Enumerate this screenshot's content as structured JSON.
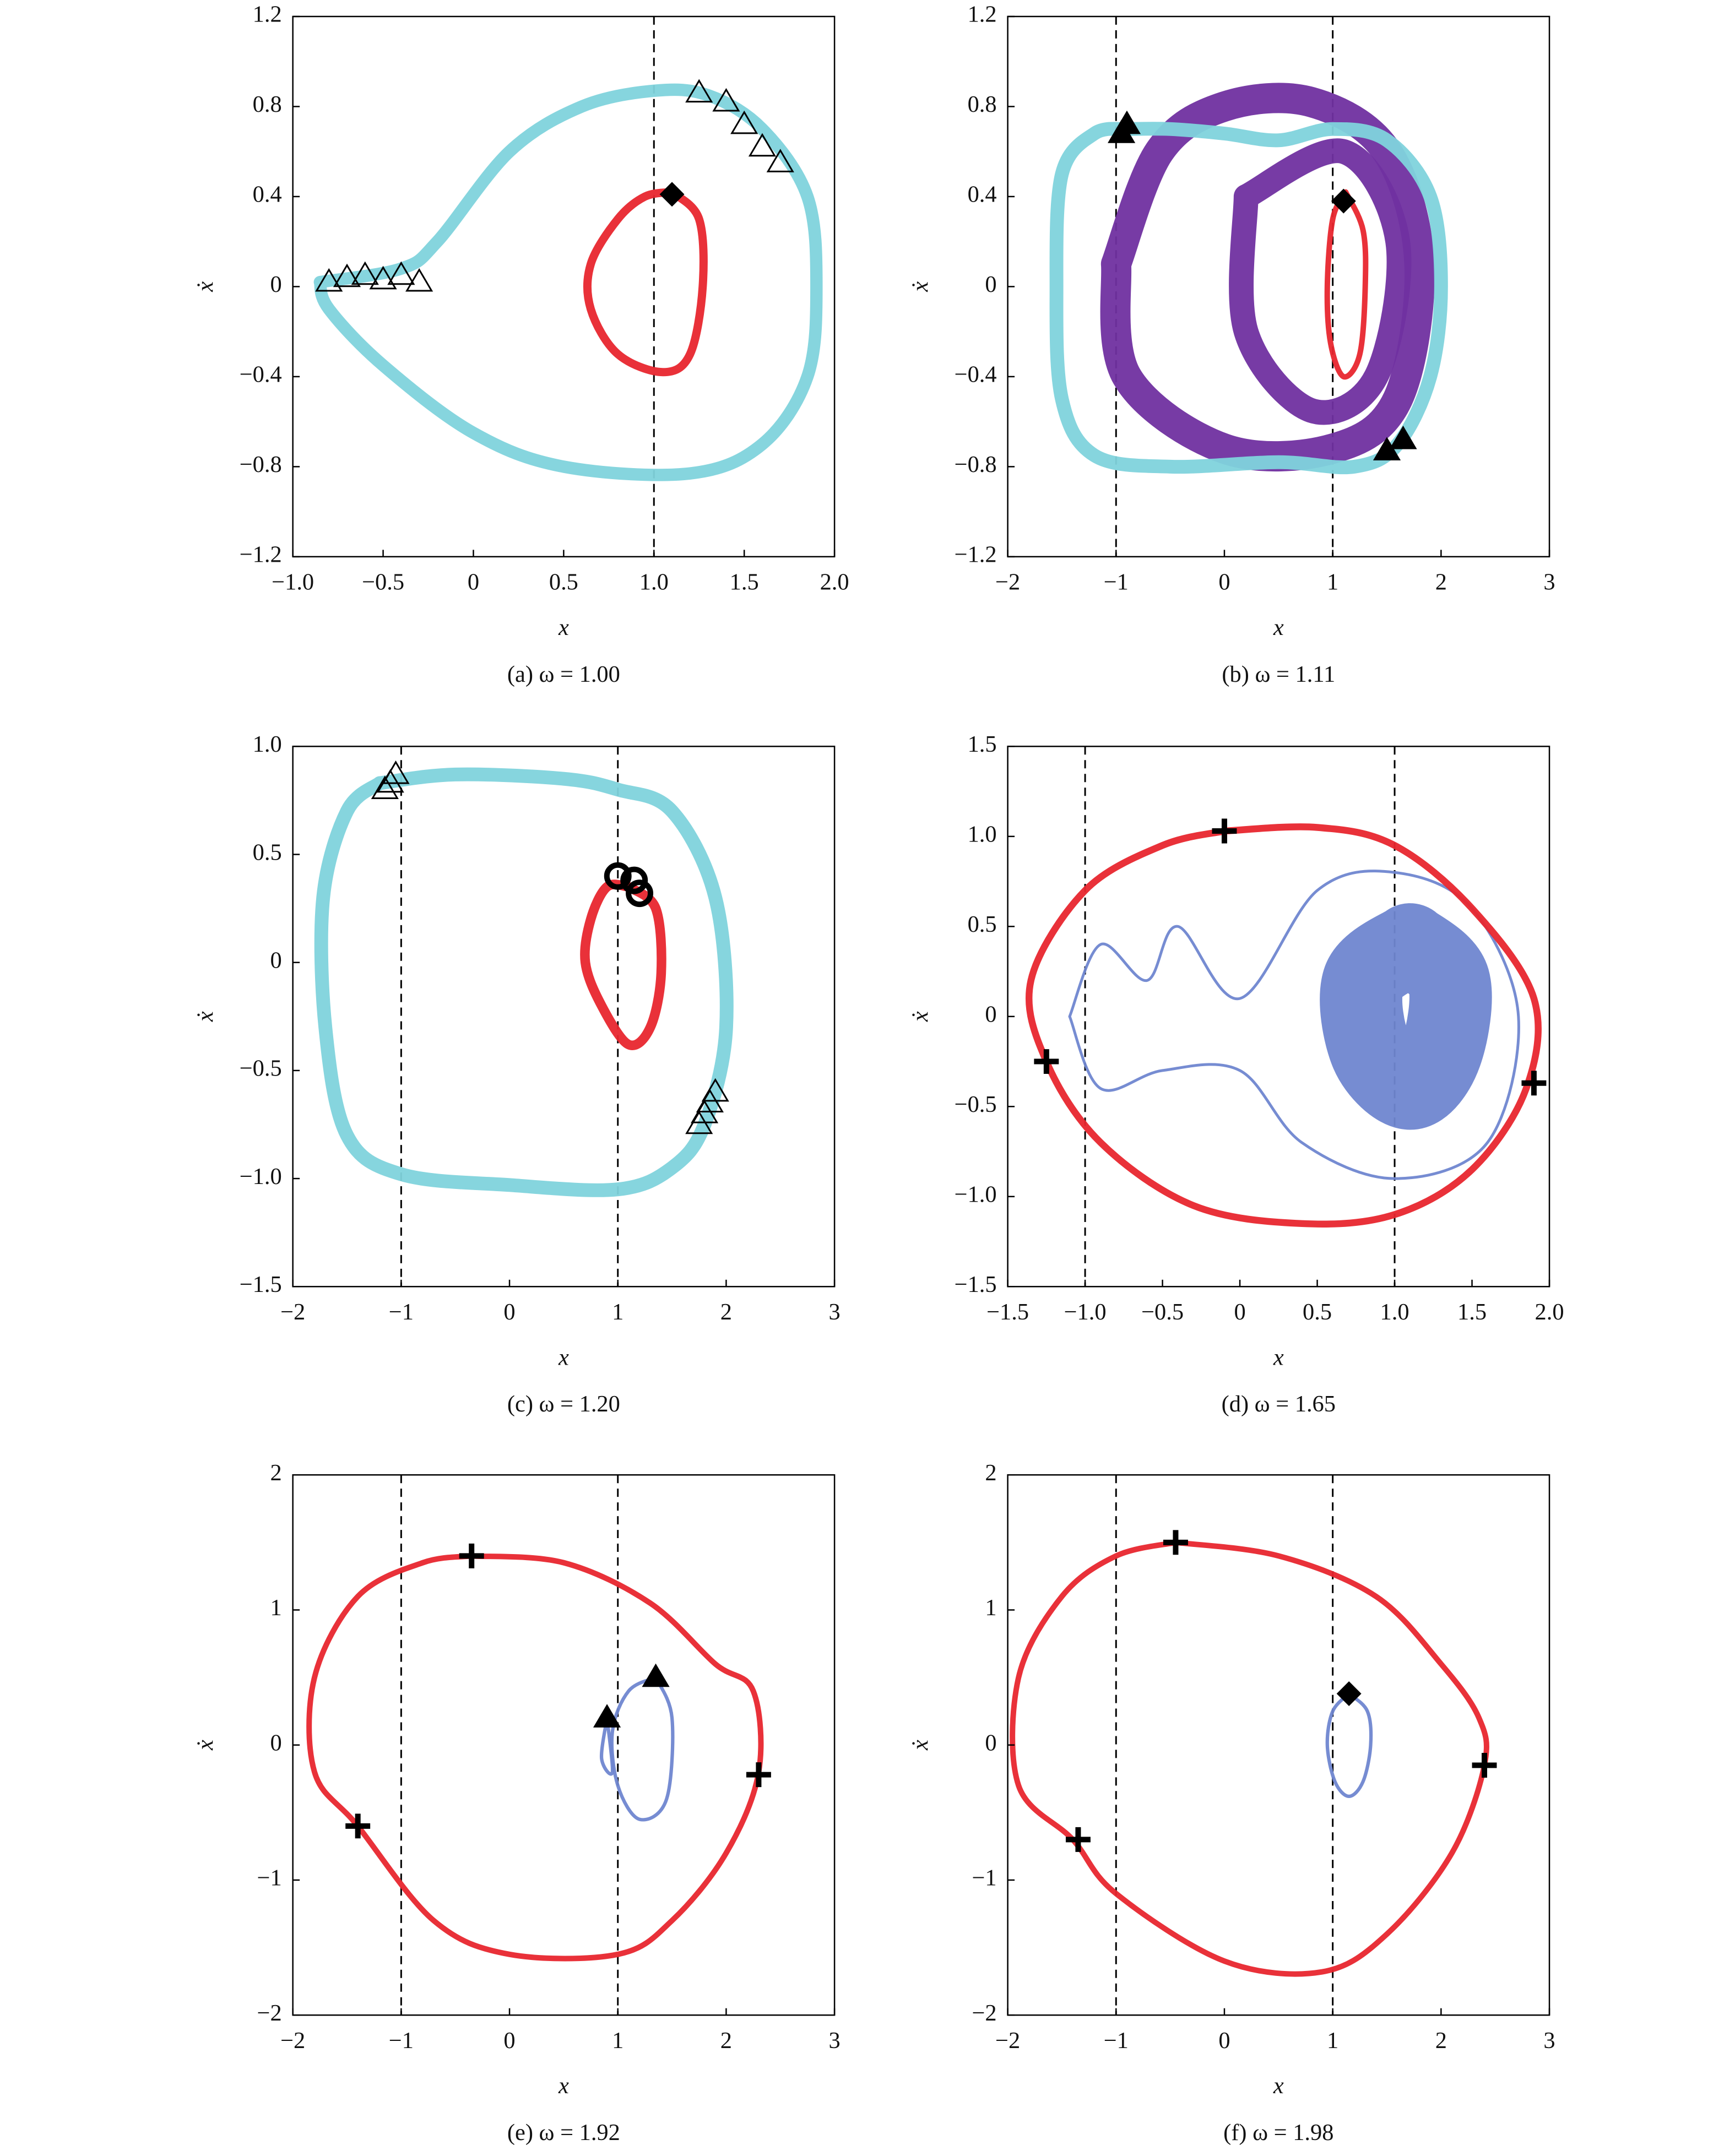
{
  "chart_data": [
    {
      "type": "line",
      "caption": "(a) ω = 1.00",
      "xlabel": "x",
      "ylabel": "ẋ",
      "xlim": [
        -1,
        2
      ],
      "xticks": [
        {
          "value": -1,
          "label": "−1.0"
        },
        {
          "value": -0.5,
          "label": "−0.5"
        },
        0,
        0.5,
        {
          "value": 1,
          "label": "1.0"
        },
        1.5,
        {
          "value": 2,
          "label": "2.0"
        }
      ],
      "ylim": [
        -1.2,
        1.2
      ],
      "yticks": [
        {
          "value": -1.2,
          "label": "−1.2"
        },
        {
          "value": -0.8,
          "label": "−0.8"
        },
        {
          "value": -0.4,
          "label": "−0.4"
        },
        0,
        0.4,
        0.8,
        1.2
      ],
      "vlines": [
        1
      ],
      "series": [
        {
          "color": "#7fd3dc",
          "linewidth": 9,
          "x": [
            -0.85,
            -0.4,
            -0.2,
            0.2,
            0.6,
            1.0,
            1.3,
            1.6,
            1.85,
            1.9,
            1.85,
            1.6,
            1.2,
            0.5,
            0,
            -0.5,
            -0.8,
            -0.85
          ],
          "values": [
            0.02,
            0.08,
            0.2,
            0.6,
            0.8,
            0.87,
            0.85,
            0.7,
            0.4,
            0,
            -0.4,
            -0.7,
            -0.83,
            -0.8,
            -0.65,
            -0.35,
            -0.1,
            0.02
          ]
        },
        {
          "color": "#e8262e",
          "linewidth": 6,
          "x": [
            1.1,
            1.25,
            1.27,
            1.2,
            1.05,
            0.8,
            0.65,
            0.65,
            0.8,
            0.95,
            1.1
          ],
          "values": [
            0.42,
            0.3,
            0,
            -0.3,
            -0.38,
            -0.3,
            -0.1,
            0.1,
            0.3,
            0.4,
            0.42
          ]
        },
        {
          "color": "#000000",
          "marker": "triangle-open",
          "x": [
            -0.8,
            -0.7,
            -0.6,
            -0.5,
            -0.4,
            -0.3,
            1.25,
            1.4,
            1.5,
            1.6,
            1.7
          ],
          "values": [
            0.02,
            0.04,
            0.05,
            0.03,
            0.05,
            0.02,
            0.86,
            0.82,
            0.72,
            0.62,
            0.55
          ]
        },
        {
          "color": "#000000",
          "marker": "diamond",
          "x": [
            1.1
          ],
          "values": [
            0.41
          ]
        }
      ]
    },
    {
      "type": "line",
      "caption": "(b) ω = 1.11",
      "xlabel": "x",
      "ylabel": "ẋ",
      "xlim": [
        -2,
        3
      ],
      "xticks": [
        {
          "value": -2,
          "label": "−2"
        },
        {
          "value": -1,
          "label": "−1"
        },
        0,
        1,
        2,
        3
      ],
      "ylim": [
        -1.2,
        1.2
      ],
      "yticks": [
        {
          "value": -1.2,
          "label": "−1.2"
        },
        {
          "value": -0.8,
          "label": "−0.8"
        },
        {
          "value": -0.4,
          "label": "−0.4"
        },
        0,
        0.4,
        0.8,
        1.2
      ],
      "vlines": [
        -1,
        1
      ],
      "series": [
        {
          "color": "#7030a0",
          "linewidth": 22,
          "x": [
            -1,
            -0.6,
            0,
            0.8,
            1.5,
            1.8,
            1.6,
            1.0,
            0,
            -0.9,
            -1
          ],
          "values": [
            0.1,
            0.6,
            0.8,
            0.82,
            0.6,
            0.1,
            -0.5,
            -0.72,
            -0.72,
            -0.4,
            0.1
          ]
        },
        {
          "color": "#7030a0",
          "linewidth": 18,
          "x": [
            0.2,
            1.1,
            1.6,
            1.4,
            0.8,
            0.2,
            0.2
          ],
          "values": [
            0.4,
            0.6,
            0.2,
            -0.4,
            -0.55,
            -0.2,
            0.4
          ]
        },
        {
          "color": "#7fd3dc",
          "linewidth": 10,
          "x": [
            -0.9,
            -0.5,
            0,
            0.5,
            1,
            1.5,
            1.9,
            2.0,
            1.9,
            1.6,
            1.2,
            0.5,
            -0.5,
            -1.2,
            -1.5,
            -1.55,
            -1.5,
            -1.2,
            -0.9
          ],
          "values": [
            0.7,
            0.7,
            0.68,
            0.65,
            0.7,
            0.65,
            0.4,
            0,
            -0.4,
            -0.7,
            -0.8,
            -0.78,
            -0.8,
            -0.75,
            -0.5,
            0,
            0.5,
            0.68,
            0.7
          ]
        },
        {
          "color": "#e8262e",
          "linewidth": 4,
          "x": [
            1.12,
            1.28,
            1.3,
            1.25,
            1.1,
            0.98,
            0.95,
            1.0,
            1.12
          ],
          "values": [
            0.42,
            0.25,
            0,
            -0.3,
            -0.4,
            -0.25,
            0,
            0.3,
            0.42
          ]
        },
        {
          "color": "#000000",
          "marker": "triangle",
          "x": [
            -0.95,
            -0.9,
            1.5,
            1.65
          ],
          "values": [
            0.68,
            0.72,
            -0.73,
            -0.68
          ]
        },
        {
          "color": "#000000",
          "marker": "diamond",
          "x": [
            1.1
          ],
          "values": [
            0.38
          ]
        }
      ]
    },
    {
      "type": "line",
      "caption": "(c) ω = 1.20",
      "xlabel": "x",
      "ylabel": "ẋ",
      "xlim": [
        -2,
        3
      ],
      "xticks": [
        {
          "value": -2,
          "label": "−2"
        },
        {
          "value": -1,
          "label": "−1"
        },
        0,
        1,
        2,
        3
      ],
      "ylim": [
        -1.5,
        1
      ],
      "yticks": [
        {
          "value": -1.5,
          "label": "−1.5"
        },
        {
          "value": -1,
          "label": "−1.0"
        },
        {
          "value": -0.5,
          "label": "−0.5"
        },
        0,
        0.5,
        {
          "value": 1,
          "label": "1.0"
        }
      ],
      "vlines": [
        -1,
        1
      ],
      "series": [
        {
          "color": "#7fd3dc",
          "linewidth": 10,
          "x": [
            -1.2,
            -0.5,
            0.5,
            1.0,
            1.5,
            1.9,
            2.0,
            1.8,
            1.5,
            1.0,
            0,
            -1,
            -1.5,
            -1.7,
            -1.72,
            -1.5,
            -1.2
          ],
          "values": [
            0.83,
            0.87,
            0.85,
            0.8,
            0.7,
            0.3,
            -0.3,
            -0.75,
            -0.95,
            -1.05,
            -1.03,
            -0.98,
            -0.8,
            -0.3,
            0.3,
            0.7,
            0.83
          ]
        },
        {
          "color": "#e8262e",
          "linewidth": 7,
          "x": [
            1.1,
            1.35,
            1.4,
            1.3,
            1.1,
            0.85,
            0.7,
            0.75,
            0.9,
            1.1
          ],
          "values": [
            0.35,
            0.25,
            -0.05,
            -0.3,
            -0.38,
            -0.2,
            0,
            0.2,
            0.35,
            0.35
          ]
        },
        {
          "color": "#000000",
          "marker": "triangle-open",
          "x": [
            -1.15,
            -1.1,
            -1.05,
            1.75,
            1.8,
            1.85,
            1.9
          ],
          "values": [
            0.8,
            0.83,
            0.87,
            -0.75,
            -0.7,
            -0.65,
            -0.6
          ]
        },
        {
          "color": "#000000",
          "marker": "circle",
          "x": [
            1.0,
            1.15,
            1.2
          ],
          "values": [
            0.4,
            0.38,
            0.32
          ]
        }
      ]
    },
    {
      "type": "line",
      "caption": "(d) ω = 1.65",
      "xlabel": "x",
      "ylabel": "ẋ",
      "xlim": [
        -1.5,
        2
      ],
      "xticks": [
        {
          "value": -1.5,
          "label": "−1.5"
        },
        {
          "value": -1,
          "label": "−1.0"
        },
        {
          "value": -0.5,
          "label": "−0.5"
        },
        0,
        0.5,
        {
          "value": 1,
          "label": "1.0"
        },
        1.5,
        {
          "value": 2,
          "label": "2.0"
        }
      ],
      "ylim": [
        -1.5,
        1.5
      ],
      "yticks": [
        {
          "value": -1.5,
          "label": "−1.5"
        },
        {
          "value": -1,
          "label": "−1.0"
        },
        {
          "value": -0.5,
          "label": "−0.5"
        },
        0,
        0.5,
        {
          "value": 1,
          "label": "1.0"
        },
        1.5
      ],
      "vlines": [
        -1,
        1
      ],
      "series": [
        {
          "color": "#6f86d0",
          "linewidth": 2,
          "x": [
            -1.1,
            -0.9,
            -0.6,
            -0.4,
            0,
            0.5,
            1.0,
            1.5,
            1.8,
            1.6,
            1,
            0.4,
            0,
            -0.5,
            -0.9,
            -1.1
          ],
          "values": [
            0,
            0.4,
            0.2,
            0.5,
            0.1,
            0.7,
            0.8,
            0.6,
            0,
            -0.7,
            -0.9,
            -0.7,
            -0.3,
            -0.3,
            -0.4,
            0
          ]
        },
        {
          "color": "#6f86d0",
          "linewidth": 60,
          "x": [
            1.1,
            1.35,
            1.3,
            1.1,
            0.85,
            0.8,
            1.1
          ],
          "values": [
            0.4,
            0.2,
            -0.2,
            -0.4,
            -0.2,
            0.2,
            0.4
          ]
        },
        {
          "color": "#e8262e",
          "linewidth": 5,
          "x": [
            -0.1,
            0.5,
            1.0,
            1.5,
            1.9,
            1.85,
            1.5,
            1.0,
            0.4,
            -0.3,
            -0.9,
            -1.25,
            -1.35,
            -1,
            -0.5,
            -0.1
          ],
          "values": [
            1.03,
            1.05,
            0.95,
            0.6,
            0.1,
            -0.4,
            -0.85,
            -1.1,
            -1.15,
            -1.05,
            -0.7,
            -0.25,
            0.2,
            0.7,
            0.95,
            1.03
          ]
        },
        {
          "color": "#000000",
          "marker": "plus",
          "x": [
            -0.1,
            -1.25,
            1.9
          ],
          "values": [
            1.03,
            -0.25,
            -0.37
          ]
        }
      ]
    },
    {
      "type": "line",
      "caption": "(e) ω = 1.92",
      "xlabel": "x",
      "ylabel": "ẋ",
      "xlim": [
        -2,
        3
      ],
      "xticks": [
        {
          "value": -2,
          "label": "−2"
        },
        {
          "value": -1,
          "label": "−1"
        },
        0,
        1,
        2,
        3
      ],
      "ylim": [
        -2,
        2
      ],
      "yticks": [
        {
          "value": -2,
          "label": "−2"
        },
        {
          "value": -1,
          "label": "−1"
        },
        0,
        1,
        2
      ],
      "vlines": [
        -1,
        1
      ],
      "series": [
        {
          "color": "#e8262e",
          "linewidth": 4,
          "x": [
            -0.35,
            0.5,
            1.3,
            1.9,
            2.25,
            2.3,
            2.0,
            1.5,
            1.0,
            0,
            -0.7,
            -1.4,
            -1.8,
            -1.8,
            -1.4,
            -0.8,
            -0.35
          ],
          "values": [
            1.4,
            1.35,
            1.05,
            0.6,
            0.4,
            -0.2,
            -0.8,
            -1.3,
            -1.55,
            -1.55,
            -1.3,
            -0.6,
            -0.2,
            0.5,
            1.1,
            1.35,
            1.4
          ]
        },
        {
          "color": "#6f86d0",
          "linewidth": 2.5,
          "x": [
            1.35,
            1.5,
            1.45,
            1.2,
            1.0,
            0.95,
            1.1,
            1.35
          ],
          "values": [
            0.5,
            0.2,
            -0.4,
            -0.55,
            -0.3,
            0.1,
            0.4,
            0.5
          ]
        },
        {
          "color": "#6f86d0",
          "linewidth": 2.5,
          "x": [
            0.9,
            0.95,
            0.85,
            0.9
          ],
          "values": [
            0.2,
            -0.2,
            -0.1,
            0.2
          ]
        },
        {
          "color": "#000000",
          "marker": "triangle",
          "x": [
            0.9,
            1.35
          ],
          "values": [
            0.2,
            0.5
          ]
        },
        {
          "color": "#000000",
          "marker": "plus",
          "x": [
            -0.35,
            2.3,
            -1.4
          ],
          "values": [
            1.4,
            -0.22,
            -0.6
          ]
        }
      ]
    },
    {
      "type": "line",
      "caption": "(f) ω = 1.98",
      "xlabel": "x",
      "ylabel": "ẋ",
      "xlim": [
        -2,
        3
      ],
      "xticks": [
        {
          "value": -2,
          "label": "−2"
        },
        {
          "value": -1,
          "label": "−1"
        },
        0,
        1,
        2,
        3
      ],
      "ylim": [
        -2,
        2
      ],
      "yticks": [
        {
          "value": -2,
          "label": "−2"
        },
        {
          "value": -1,
          "label": "−1"
        },
        0,
        1,
        2
      ],
      "vlines": [
        -1,
        1
      ],
      "series": [
        {
          "color": "#e8262e",
          "linewidth": 4,
          "x": [
            -0.45,
            0.5,
            1.4,
            2.0,
            2.35,
            2.4,
            2.1,
            1.5,
            0.9,
            0,
            -1.0,
            -1.4,
            -1.9,
            -1.9,
            -1.5,
            -1,
            -0.45
          ],
          "values": [
            1.5,
            1.4,
            1.1,
            0.6,
            0.2,
            -0.15,
            -0.8,
            -1.4,
            -1.68,
            -1.6,
            -1.1,
            -0.7,
            -0.3,
            0.5,
            1.1,
            1.4,
            1.5
          ]
        },
        {
          "color": "#6f86d0",
          "linewidth": 2.5,
          "x": [
            1.15,
            1.32,
            1.35,
            1.28,
            1.15,
            1.02,
            0.95,
            1.0,
            1.15
          ],
          "values": [
            0.38,
            0.25,
            0,
            -0.27,
            -0.38,
            -0.27,
            0,
            0.25,
            0.38
          ]
        },
        {
          "color": "#000000",
          "marker": "diamond",
          "x": [
            1.15
          ],
          "values": [
            0.38
          ]
        },
        {
          "color": "#000000",
          "marker": "plus",
          "x": [
            -0.45,
            2.4,
            -1.35
          ],
          "values": [
            1.5,
            -0.15,
            -0.7
          ]
        }
      ]
    }
  ]
}
